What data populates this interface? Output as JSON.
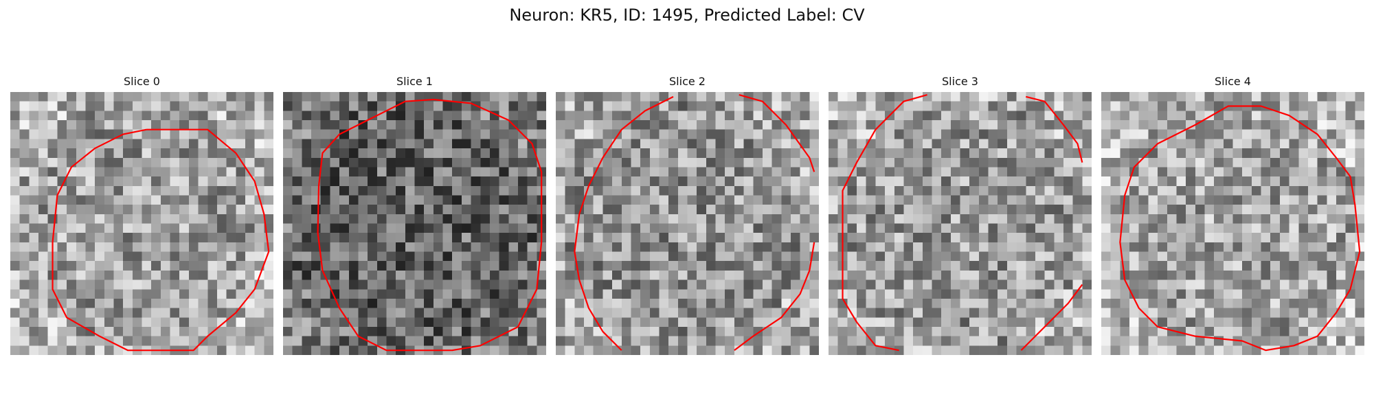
{
  "figure": {
    "title": "Neuron: KR5, ID: 1495, Predicted Label: CV"
  },
  "panels": [
    {
      "label": "Slice 0",
      "brightness": 0.62,
      "seed": 11
    },
    {
      "label": "Slice 1",
      "brightness": 0.4,
      "seed": 23
    },
    {
      "label": "Slice 2",
      "brightness": 0.58,
      "seed": 37
    },
    {
      "label": "Slice 3",
      "brightness": 0.6,
      "seed": 41
    },
    {
      "label": "Slice 4",
      "brightness": 0.64,
      "seed": 53
    }
  ],
  "colors": {
    "contour": "#ff0000"
  },
  "grid": {
    "cells": 28
  }
}
